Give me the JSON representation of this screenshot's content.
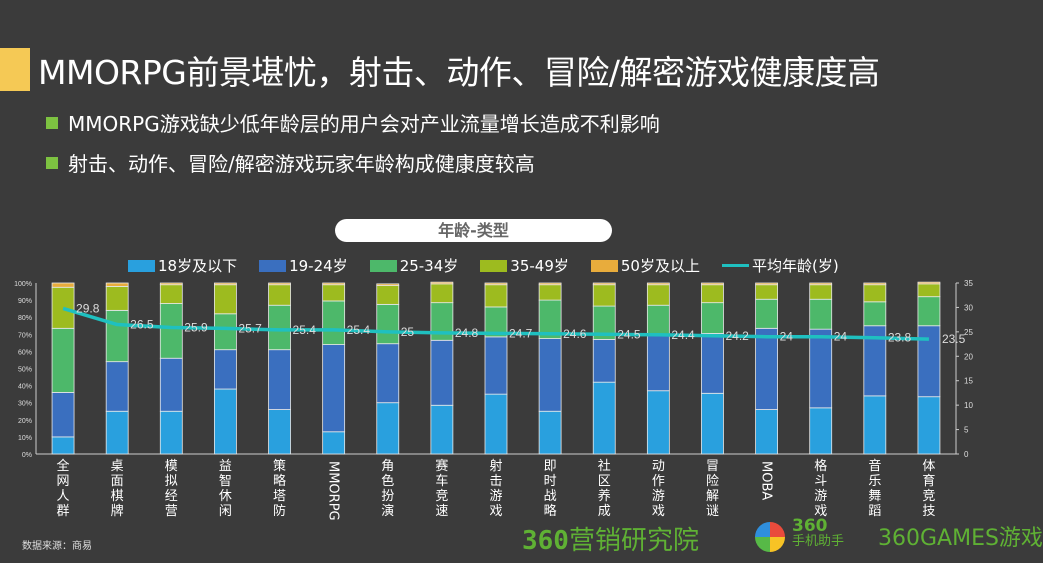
{
  "header": {
    "title": "MMORPG前景堪忧，射击、动作、冒险/解密游戏健康度高"
  },
  "bullets": [
    "MMORPG游戏缺少低年龄层的用户会对产业流量增长造成不利影响",
    "射击、动作、冒险/解密游戏玩家年龄构成健康度较高"
  ],
  "footer": {
    "source": "数据来源：商易",
    "logo_research": "360营销研究院",
    "logo_research_num": "360",
    "logo_research_text": "营销研究院",
    "logo_assistant": "360手机助手",
    "logo_assistant_num": "360",
    "logo_assistant_text": "手机助手",
    "logo_games": "360GAMES游戏"
  },
  "chart_data": {
    "type": "bar",
    "stacked": true,
    "title": "年龄-类型",
    "categories": [
      "全网人群",
      "桌面棋牌",
      "模拟经营",
      "益智休闲",
      "策略塔防",
      "MMORPG",
      "角色扮演",
      "赛车竞速",
      "射击游戏",
      "即时战略",
      "社区养成",
      "动作游戏",
      "冒险解谜",
      "MOBA",
      "格斗游戏",
      "音乐舞蹈",
      "体育竞技"
    ],
    "series": [
      {
        "name": "18岁及以下",
        "color": "#29a0de",
        "values": [
          10,
          25,
          25,
          38,
          26,
          13,
          30,
          28.5,
          35,
          25,
          42,
          37,
          35.5,
          26,
          27,
          34,
          33.5
        ]
      },
      {
        "name": "19-24岁",
        "color": "#3a6fbf",
        "values": [
          26,
          29,
          31,
          23,
          35,
          51,
          34.5,
          38,
          33.5,
          42.5,
          25,
          33,
          35,
          47.5,
          46,
          41,
          41.5
        ]
      },
      {
        "name": "25-34岁",
        "color": "#4db86a",
        "values": [
          37.5,
          30,
          32,
          21,
          26,
          25.5,
          23,
          22,
          17.5,
          22.5,
          19.5,
          17,
          18,
          17,
          17.5,
          14,
          17
        ]
      },
      {
        "name": "35-49岁",
        "color": "#9dbb1f",
        "values": [
          24,
          14,
          11,
          17,
          12,
          9.5,
          11,
          11,
          13,
          9,
          12.5,
          12,
          10.5,
          8.5,
          8.5,
          10,
          7.5
        ]
      },
      {
        "name": "50岁及以上",
        "color": "#e8ac3c",
        "values": [
          2.5,
          2,
          1,
          1,
          1,
          1,
          1,
          1,
          1,
          1,
          1,
          1,
          1,
          1,
          1,
          1,
          1
        ]
      }
    ],
    "line": {
      "name": "平均年龄(岁)",
      "color": "#1fc0c0",
      "axis": "right",
      "values": [
        29.8,
        26.5,
        25.9,
        25.7,
        25.4,
        25.4,
        25,
        24.8,
        24.7,
        24.6,
        24.5,
        24.4,
        24.2,
        24,
        24,
        23.8,
        23.5
      ]
    },
    "left_axis": {
      "ylim": [
        0,
        100
      ],
      "ticks": [
        "0%",
        "10%",
        "20%",
        "30%",
        "40%",
        "50%",
        "60%",
        "70%",
        "80%",
        "90%",
        "100%"
      ]
    },
    "right_axis": {
      "ylim": [
        0,
        35
      ],
      "ticks": [
        "0",
        "5",
        "10",
        "15",
        "20",
        "25",
        "30",
        "35"
      ]
    },
    "legend": "top"
  }
}
